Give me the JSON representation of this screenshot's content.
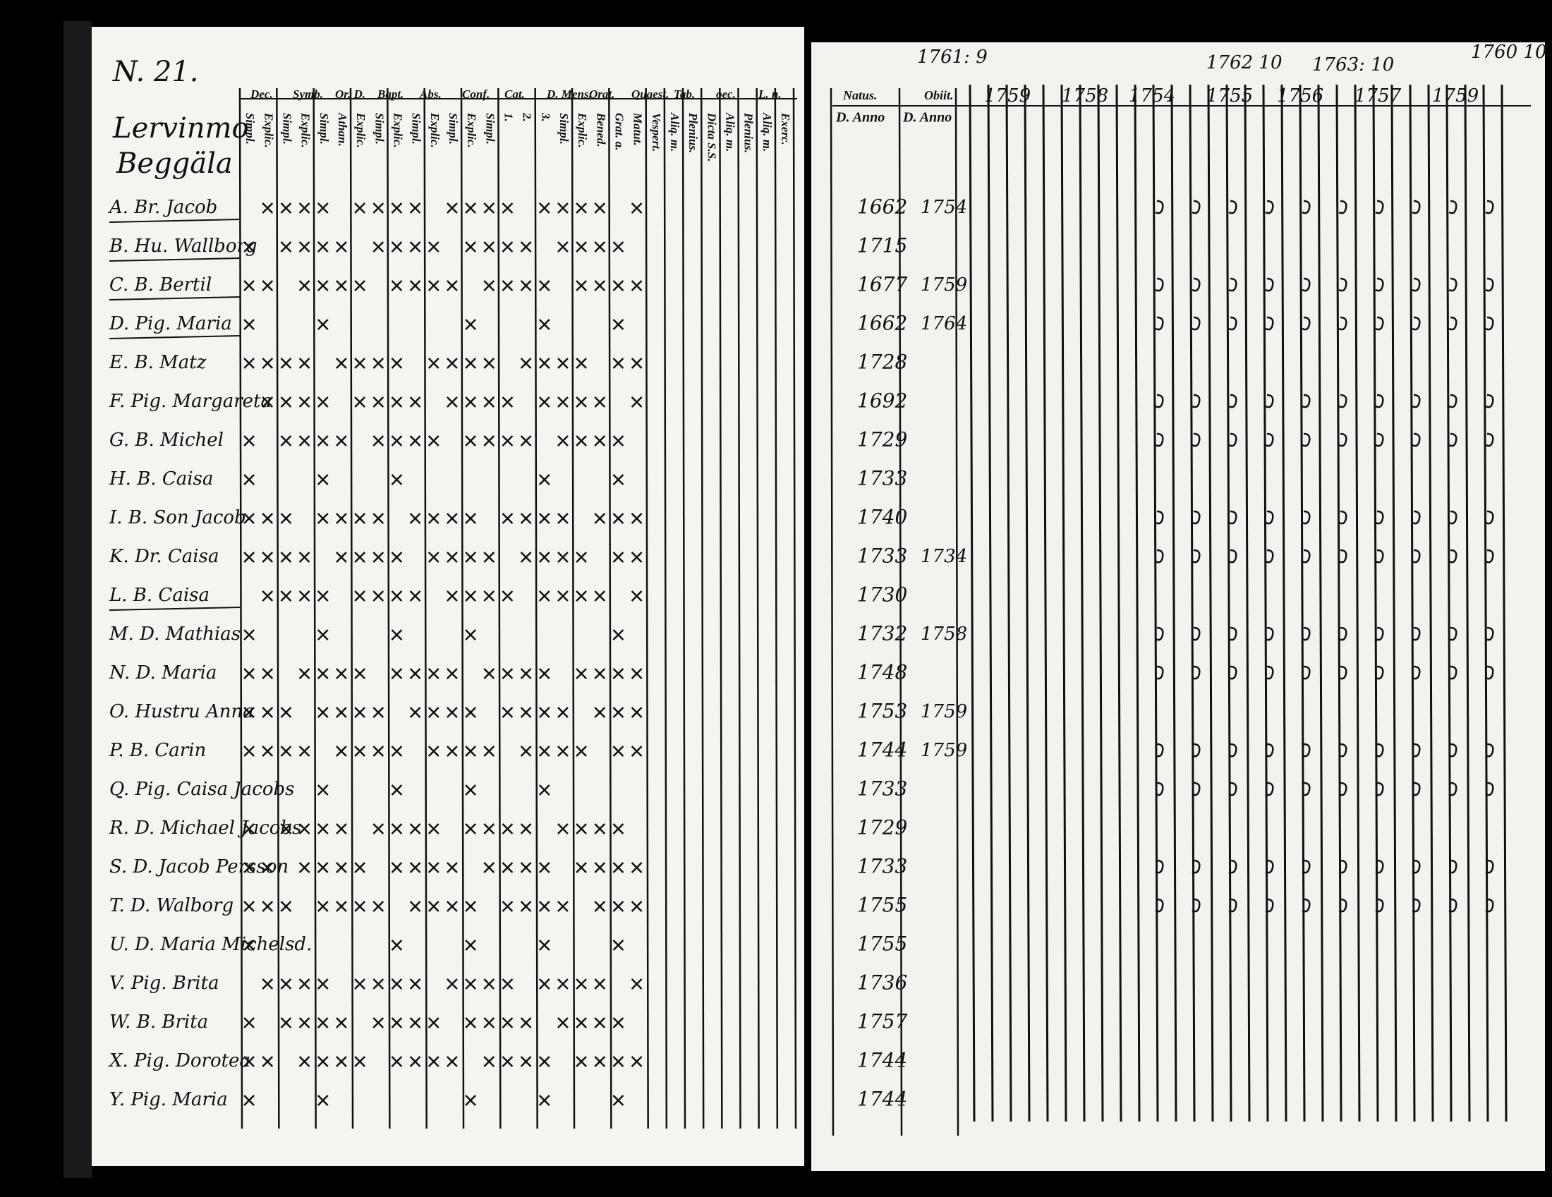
{
  "page_number": "N. 21.",
  "village": [
    "Lervinmo",
    "Beggäla"
  ],
  "left_headers": [
    "Dec.",
    "Symb.",
    "Or. D.",
    "Bapt.",
    "Abs.",
    "Conf.",
    "Cat.",
    "D. Mens.",
    "Orat.",
    "Quaest.",
    "Tab.",
    "oec.",
    "L. n."
  ],
  "left_subheaders": [
    "Simpl.",
    "Explic.",
    "Simpl.",
    "Explic.",
    "Simpl.",
    "Athan.",
    "Explic.",
    "Simpl.",
    "Explic.",
    "Simpl.",
    "Explic.",
    "Simpl.",
    "Explic.",
    "Simpl.",
    "1.",
    "2.",
    "3.",
    "Simpl.",
    "Explic.",
    "Bened.",
    "Grat. a.",
    "Matut.",
    "Vespert.",
    "Aliq. m.",
    "Plenius.",
    "Dicta S.S.",
    "Aliq. m.",
    "Plenius.",
    "Aliq. m.",
    "Exerc."
  ],
  "right_headers": [
    "Natus.",
    "Obiit."
  ],
  "right_subheaders": [
    "D. Anno",
    "D. Anno"
  ],
  "top_notes": [
    "1761: 9",
    "1762 10",
    "1763: 10",
    "1760 10"
  ],
  "year_headers": [
    "1759",
    "1758",
    "1754",
    "1755",
    "1756",
    "1757",
    "1759"
  ],
  "rows": [
    {
      "label": "A. Br. Jacob",
      "natus": "1662",
      "obiit": "1754"
    },
    {
      "label": "B. Hu. Wallborg",
      "natus": "1715"
    },
    {
      "label": "C. B. Bertil",
      "natus": "1677",
      "obiit": "1759"
    },
    {
      "label": "D. Pig. Maria",
      "natus": "1662",
      "obiit": "1764"
    },
    {
      "label": "E. B. Matz",
      "natus": "1728"
    },
    {
      "label": "F. Pig. Margareta",
      "natus": "1692"
    },
    {
      "label": "G. B. Michel",
      "natus": "1729"
    },
    {
      "label": "H. B. Caisa",
      "natus": "1733"
    },
    {
      "label": "I. B. Son Jacob",
      "natus": "1740"
    },
    {
      "label": "K. Dr. Caisa",
      "natus": "1733",
      "obiit": "1734"
    },
    {
      "label": "L. B. Caisa",
      "natus": "1730"
    },
    {
      "label": "M. D. Mathias",
      "natus": "1732",
      "obiit": "1758"
    },
    {
      "label": "N. D. Maria",
      "natus": "1748"
    },
    {
      "label": "O. Hustru Anna",
      "natus": "1753",
      "obiit": "1759"
    },
    {
      "label": "P. B. Carin",
      "natus": "1744",
      "obiit": "1759"
    },
    {
      "label": "Q. Pig. Caisa Jacobs",
      "natus": "1733"
    },
    {
      "label": "R. D. Michael Jacobs",
      "natus": "1729"
    },
    {
      "label": "S. D. Jacob Persson",
      "natus": "1733"
    },
    {
      "label": "T. D. Walborg",
      "natus": "1755"
    },
    {
      "label": "U. D. Maria Michelsd.",
      "natus": "1755"
    },
    {
      "label": "V. Pig. Brita",
      "natus": "1736"
    },
    {
      "label": "W. B. Brita",
      "natus": "1757"
    },
    {
      "label": "X. Pig. Dorotea",
      "natus": "1744"
    },
    {
      "label": "Y. Pig. Maria",
      "natus": "1744"
    }
  ]
}
